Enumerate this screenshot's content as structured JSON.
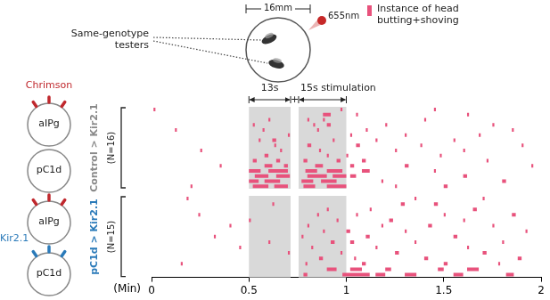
{
  "chart_data": [
    {
      "type": "raster",
      "label": {
        "text": "Control > Kir2.1",
        "color": "#8a8a8a"
      },
      "n": {
        "value": 16,
        "label": "(N=16)"
      },
      "color": "#e8527c",
      "xlim": [
        0,
        2
      ],
      "xticks": [
        0,
        0.5,
        1,
        1.5,
        2
      ],
      "tick_labels": false,
      "shaded": [
        [
          0.5,
          0.714
        ],
        [
          0.755,
          1.0
        ]
      ],
      "events": [
        [
          0.01,
          0.02,
          1
        ],
        [
          0.97,
          0.98,
          1
        ],
        [
          1.45,
          1.46,
          1
        ],
        [
          0.88,
          0.92,
          2
        ],
        [
          1.05,
          1.06,
          2
        ],
        [
          1.62,
          1.63,
          2
        ],
        [
          0.6,
          0.61,
          3
        ],
        [
          0.8,
          0.81,
          3
        ],
        [
          0.88,
          0.89,
          3
        ],
        [
          1.4,
          1.41,
          3
        ],
        [
          0.52,
          0.53,
          4
        ],
        [
          0.83,
          0.84,
          4
        ],
        [
          0.9,
          0.92,
          4
        ],
        [
          1.2,
          1.21,
          4
        ],
        [
          1.75,
          1.76,
          4
        ],
        [
          0.12,
          0.13,
          5
        ],
        [
          0.57,
          0.58,
          5
        ],
        [
          0.85,
          0.86,
          5
        ],
        [
          1.1,
          1.11,
          5
        ],
        [
          1.85,
          1.86,
          5
        ],
        [
          0.7,
          0.71,
          6
        ],
        [
          1.02,
          1.03,
          6
        ],
        [
          1.3,
          1.31,
          6
        ],
        [
          1.68,
          1.69,
          6
        ],
        [
          0.55,
          0.56,
          7
        ],
        [
          0.62,
          0.64,
          7
        ],
        [
          0.93,
          0.94,
          7
        ],
        [
          1.15,
          1.16,
          7
        ],
        [
          1.55,
          1.56,
          7
        ],
        [
          0.63,
          0.64,
          8
        ],
        [
          0.8,
          0.82,
          8
        ],
        [
          1.05,
          1.07,
          8
        ],
        [
          1.38,
          1.39,
          8
        ],
        [
          1.9,
          1.91,
          8
        ],
        [
          0.25,
          0.26,
          9
        ],
        [
          0.66,
          0.67,
          9
        ],
        [
          0.86,
          0.87,
          9
        ],
        [
          1.25,
          1.26,
          9
        ],
        [
          1.6,
          1.61,
          9
        ],
        [
          0.58,
          0.6,
          10
        ],
        [
          0.9,
          0.91,
          10
        ],
        [
          1.0,
          1.01,
          10
        ],
        [
          1.48,
          1.49,
          10
        ],
        [
          0.52,
          0.54,
          11
        ],
        [
          0.64,
          0.66,
          11
        ],
        [
          0.78,
          0.8,
          11
        ],
        [
          0.95,
          0.97,
          11
        ],
        [
          1.08,
          1.1,
          11
        ],
        [
          1.72,
          1.73,
          11
        ],
        [
          0.35,
          0.36,
          12
        ],
        [
          0.58,
          0.62,
          12
        ],
        [
          0.68,
          0.7,
          12
        ],
        [
          0.84,
          0.88,
          12
        ],
        [
          1.02,
          1.04,
          12
        ],
        [
          1.3,
          1.32,
          12
        ],
        [
          1.95,
          1.96,
          12
        ],
        [
          0.5,
          0.56,
          13
        ],
        [
          0.6,
          0.7,
          13
        ],
        [
          0.79,
          0.85,
          13
        ],
        [
          0.9,
          0.98,
          13
        ],
        [
          1.08,
          1.12,
          13
        ],
        [
          1.45,
          1.46,
          13
        ],
        [
          0.53,
          0.6,
          14
        ],
        [
          0.64,
          0.71,
          14
        ],
        [
          0.8,
          0.9,
          14
        ],
        [
          0.93,
          1.0,
          14
        ],
        [
          1.02,
          1.05,
          14
        ],
        [
          1.6,
          1.62,
          14
        ],
        [
          0.5,
          0.55,
          15
        ],
        [
          0.58,
          0.66,
          15
        ],
        [
          0.77,
          0.83,
          15
        ],
        [
          0.87,
          0.95,
          15
        ],
        [
          1.18,
          1.19,
          15
        ],
        [
          1.8,
          1.82,
          15
        ],
        [
          0.2,
          0.21,
          16
        ],
        [
          0.52,
          0.6,
          16
        ],
        [
          0.63,
          0.7,
          16
        ],
        [
          0.78,
          0.84,
          16
        ],
        [
          0.9,
          1.0,
          16
        ],
        [
          1.25,
          1.26,
          16
        ],
        [
          1.5,
          1.52,
          16
        ]
      ]
    },
    {
      "type": "raster",
      "label": {
        "text": "pC1d > Kir2.1",
        "color": "#2a7ab9"
      },
      "n": {
        "value": 15,
        "label": "(N=15)"
      },
      "color": "#e8527c",
      "xlim": [
        0,
        2
      ],
      "xticks": [
        0,
        0.5,
        1,
        1.5,
        2
      ],
      "tick_labels": "x",
      "xlabel": "(Min)",
      "shaded": [
        [
          0.5,
          0.714
        ],
        [
          0.755,
          1.0
        ]
      ],
      "events": [
        [
          0.18,
          0.19,
          1
        ],
        [
          1.35,
          1.36,
          1
        ],
        [
          1.7,
          1.71,
          1
        ],
        [
          0.62,
          0.63,
          2
        ],
        [
          1.28,
          1.3,
          2
        ],
        [
          1.45,
          1.47,
          2
        ],
        [
          0.9,
          0.91,
          3
        ],
        [
          1.12,
          1.13,
          3
        ],
        [
          1.65,
          1.67,
          3
        ],
        [
          0.24,
          0.25,
          4
        ],
        [
          0.85,
          0.86,
          4
        ],
        [
          1.05,
          1.06,
          4
        ],
        [
          1.5,
          1.51,
          4
        ],
        [
          1.85,
          1.87,
          4
        ],
        [
          0.5,
          0.51,
          5
        ],
        [
          0.95,
          0.96,
          5
        ],
        [
          1.22,
          1.24,
          5
        ],
        [
          1.6,
          1.61,
          5
        ],
        [
          0.4,
          0.41,
          6
        ],
        [
          0.8,
          0.81,
          6
        ],
        [
          1.18,
          1.19,
          6
        ],
        [
          1.42,
          1.44,
          6
        ],
        [
          1.75,
          1.76,
          6
        ],
        [
          0.88,
          0.89,
          7
        ],
        [
          1.0,
          1.02,
          7
        ],
        [
          1.3,
          1.31,
          7
        ],
        [
          1.92,
          1.93,
          7
        ],
        [
          0.32,
          0.33,
          8
        ],
        [
          0.77,
          0.78,
          8
        ],
        [
          1.1,
          1.12,
          8
        ],
        [
          1.55,
          1.57,
          8
        ],
        [
          0.6,
          0.61,
          9
        ],
        [
          0.92,
          0.94,
          9
        ],
        [
          1.02,
          1.04,
          9
        ],
        [
          1.35,
          1.36,
          9
        ],
        [
          1.8,
          1.81,
          9
        ],
        [
          0.45,
          0.46,
          10
        ],
        [
          0.82,
          0.83,
          10
        ],
        [
          1.15,
          1.16,
          10
        ],
        [
          1.62,
          1.63,
          10
        ],
        [
          0.7,
          0.71,
          11
        ],
        [
          0.97,
          0.98,
          11
        ],
        [
          1.25,
          1.27,
          11
        ],
        [
          1.7,
          1.72,
          11
        ],
        [
          0.86,
          0.88,
          12
        ],
        [
          1.04,
          1.05,
          12
        ],
        [
          1.4,
          1.42,
          12
        ],
        [
          1.88,
          1.9,
          12
        ],
        [
          0.15,
          0.16,
          13
        ],
        [
          0.79,
          0.8,
          13
        ],
        [
          1.08,
          1.1,
          13
        ],
        [
          1.5,
          1.52,
          13
        ],
        [
          1.78,
          1.79,
          13
        ],
        [
          0.9,
          0.95,
          14
        ],
        [
          1.02,
          1.08,
          14
        ],
        [
          1.2,
          1.23,
          14
        ],
        [
          1.47,
          1.5,
          14
        ],
        [
          1.62,
          1.68,
          14
        ],
        [
          0.78,
          0.8,
          15
        ],
        [
          0.98,
          1.12,
          15
        ],
        [
          1.15,
          1.2,
          15
        ],
        [
          1.3,
          1.36,
          15
        ],
        [
          1.55,
          1.6,
          15
        ],
        [
          1.82,
          1.86,
          15
        ]
      ]
    }
  ],
  "diagram": {
    "arena": {
      "size_label": "16mm",
      "light_label": "655nm",
      "testers_label": "Same-genotype testers",
      "light_color": "#c62828"
    },
    "key": {
      "label": "Instance of head butting+shoving",
      "color": "#e8527c"
    },
    "stimulation": {
      "first": "13s",
      "join": "+",
      "second": "15s stimulation"
    },
    "effector_colors": {
      "Chrimson": "#c0282d",
      "Kir2.1": "#2a7ab9"
    },
    "neurons": [
      {
        "label": "Chrimson",
        "cells": [
          {
            "name": "aIPg",
            "markers": [
              "Chrimson"
            ]
          },
          {
            "name": "pC1d",
            "markers": []
          }
        ]
      },
      {
        "label": "Kir2.1",
        "cells": [
          {
            "name": "aIPg",
            "markers": [
              "Chrimson"
            ]
          },
          {
            "name": "pC1d",
            "markers": [
              "Kir2.1"
            ]
          }
        ]
      }
    ]
  }
}
